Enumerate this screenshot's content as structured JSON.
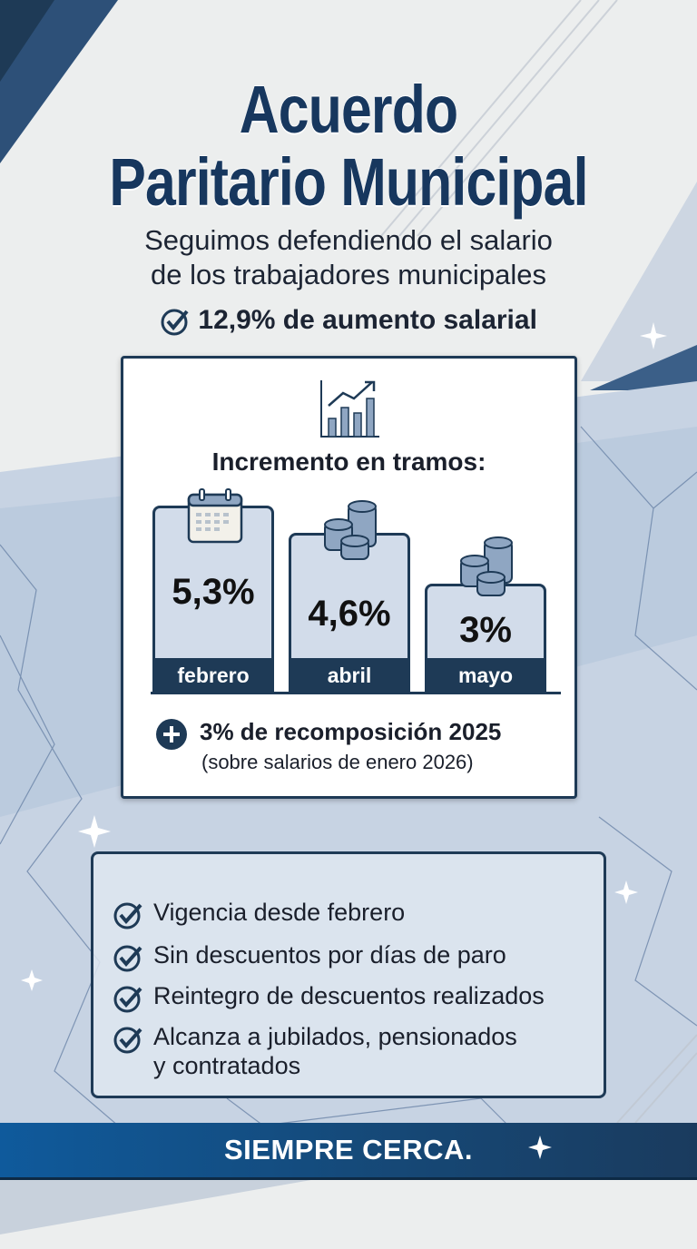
{
  "header": {
    "title_line1": "Acuerdo",
    "title_line2": "Paritario Municipal",
    "subtitle_line1": "Seguimos defendiendo el salario",
    "subtitle_line2": "de los trabajadores municipales",
    "highlight": "12,9% de aumento salarial"
  },
  "tramos": {
    "heading": "Incremento en tramos:",
    "items": [
      {
        "percent": "5,3%",
        "month": "febrero",
        "value": 5.3,
        "icon": "calendar-icon"
      },
      {
        "percent": "4,6%",
        "month": "abril",
        "value": 4.6,
        "icon": "coins-icon"
      },
      {
        "percent": "3%",
        "month": "mayo",
        "value": 3,
        "icon": "coins-icon"
      }
    ],
    "extra_title": "3% de recomposición 2025",
    "extra_note": "(sobre salarios de enero 2026)"
  },
  "conditions": [
    "Vigencia desde febrero",
    "Sin descuentos por días de paro",
    "Reintegro de descuentos realizados",
    "Alcanza a jubilados, pensionados",
    "y contratados"
  ],
  "footer": {
    "slogan": "SIEMPRE CERCA."
  },
  "colors": {
    "navy": "#1e3a56",
    "title": "#17375e",
    "bar_fill": "#d2dcea",
    "banner": "#154a7a"
  }
}
